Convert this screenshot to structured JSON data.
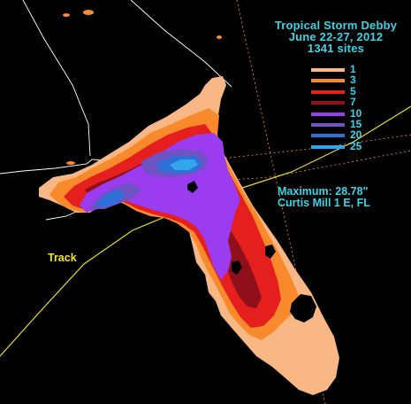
{
  "title": {
    "line1": "Tropical Storm  Debby",
    "line2": "June 22-27, 2012",
    "line3": "1341 sites"
  },
  "legend": [
    {
      "label": "1",
      "color": "#f8b784"
    },
    {
      "label": "3",
      "color": "#f98a2c"
    },
    {
      "label": "5",
      "color": "#e51e1e"
    },
    {
      "label": "7",
      "color": "#8f0f1a"
    },
    {
      "label": "10",
      "color": "#9b3cf0"
    },
    {
      "label": "15",
      "color": "#6f52c4"
    },
    {
      "label": "20",
      "color": "#2f6fd8"
    },
    {
      "label": "25",
      "color": "#32a6ea"
    }
  ],
  "maximum": {
    "line1": "Maximum:  28.78\"",
    "line2": "Curtis Mill 1 E, FL"
  },
  "track_label": "Track",
  "colors": {
    "background": "#000000",
    "text": "#39d3e6",
    "track_line": "#e8dd22",
    "borders": "#ffffff",
    "gridlines": "#e07f3a"
  }
}
